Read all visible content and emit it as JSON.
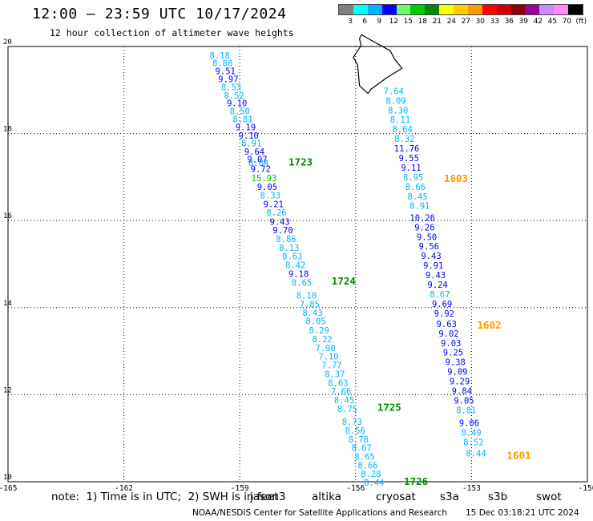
{
  "header": {
    "title": "12:00 — 23:59 UTC 10/17/2024",
    "subtitle": "12 hour collection of altimeter wave heights"
  },
  "colorbar": {
    "colors": [
      "#7f7f7f",
      "#00ffff",
      "#00b3ff",
      "#0000ff",
      "#66ff66",
      "#00cc00",
      "#008c00",
      "#ffff00",
      "#ffcc00",
      "#ff9900",
      "#ff0000",
      "#cc0000",
      "#880000",
      "#990099",
      "#c98cff",
      "#ff88ff",
      "#000000"
    ],
    "labels": [
      "3",
      "6",
      "9",
      "12",
      "15",
      "18",
      "21",
      "24",
      "27",
      "30",
      "33",
      "36",
      "39",
      "42",
      "45",
      "70",
      "(ft)"
    ]
  },
  "map": {
    "x_ticks": [
      "-165",
      "-162",
      "-159",
      "-156",
      "-153",
      "-150"
    ],
    "y_ticks": [
      "10",
      "12",
      "14",
      "16",
      "18",
      "20"
    ],
    "lon_range": [
      -165,
      -150
    ],
    "lat_range": [
      10,
      20
    ]
  },
  "tracks": [
    {
      "name": "west",
      "points": [
        {
          "lat": 19.8,
          "v": "8.18",
          "c": "#00b3ff"
        },
        {
          "lat": 19.62,
          "v": "8.88",
          "c": "#00b3ff"
        },
        {
          "lat": 19.44,
          "v": "9.51",
          "c": "#0000ff"
        },
        {
          "lat": 19.25,
          "v": "9.97",
          "c": "#0000ff"
        },
        {
          "lat": 19.07,
          "v": "8.53",
          "c": "#00b3ff"
        },
        {
          "lat": 18.88,
          "v": "8.52",
          "c": "#00b3ff"
        },
        {
          "lat": 18.7,
          "v": "9.10",
          "c": "#0000ff"
        },
        {
          "lat": 18.52,
          "v": "8.50",
          "c": "#00b3ff"
        },
        {
          "lat": 18.33,
          "v": "8.81",
          "c": "#00b3ff"
        },
        {
          "lat": 18.15,
          "v": "9.19",
          "c": "#0000ff"
        },
        {
          "lat": 17.96,
          "v": "9.10",
          "c": "#0000ff"
        },
        {
          "lat": 17.78,
          "v": "8.91",
          "c": "#00b3ff"
        },
        {
          "lat": 17.59,
          "v": "9.64",
          "c": "#0000ff"
        },
        {
          "lat": 17.41,
          "v": "9.07",
          "c": "#0000ff"
        },
        {
          "lat": 17.33,
          "v": "8.84",
          "c": "#00b3ff"
        },
        {
          "lat": 17.19,
          "v": "9.72",
          "c": "#0000ff"
        },
        {
          "lat": 16.98,
          "v": "15.93",
          "c": "#00cc00"
        },
        {
          "lat": 16.78,
          "v": "9.05",
          "c": "#0000ff"
        },
        {
          "lat": 16.58,
          "v": "8.33",
          "c": "#00b3ff"
        },
        {
          "lat": 16.38,
          "v": "9.21",
          "c": "#0000ff"
        },
        {
          "lat": 16.19,
          "v": "8.26",
          "c": "#00b3ff"
        },
        {
          "lat": 15.98,
          "v": "9.43",
          "c": "#0000ff"
        },
        {
          "lat": 15.78,
          "v": "9.70",
          "c": "#0000ff"
        },
        {
          "lat": 15.58,
          "v": "8.86",
          "c": "#00b3ff"
        },
        {
          "lat": 15.38,
          "v": "8.13",
          "c": "#00b3ff"
        },
        {
          "lat": 15.18,
          "v": "8.63",
          "c": "#00b3ff"
        },
        {
          "lat": 14.98,
          "v": "8.42",
          "c": "#00b3ff"
        },
        {
          "lat": 14.78,
          "v": "9.18",
          "c": "#0000ff"
        },
        {
          "lat": 14.58,
          "v": "8.65",
          "c": "#00b3ff"
        },
        {
          "lat": 14.28,
          "v": "8.10",
          "c": "#00b3ff"
        },
        {
          "lat": 14.08,
          "v": "7.85",
          "c": "#00b3ff"
        },
        {
          "lat": 13.89,
          "v": "8.43",
          "c": "#00b3ff"
        },
        {
          "lat": 13.69,
          "v": "8.05",
          "c": "#00b3ff"
        },
        {
          "lat": 13.48,
          "v": "8.29",
          "c": "#00b3ff"
        },
        {
          "lat": 13.28,
          "v": "8.22",
          "c": "#00b3ff"
        },
        {
          "lat": 13.08,
          "v": "7.90",
          "c": "#00b3ff"
        },
        {
          "lat": 12.88,
          "v": "7.10",
          "c": "#00b3ff"
        },
        {
          "lat": 12.68,
          "v": "7.77",
          "c": "#00b3ff"
        },
        {
          "lat": 12.48,
          "v": "8.37",
          "c": "#00b3ff"
        },
        {
          "lat": 12.27,
          "v": "8.63",
          "c": "#00b3ff"
        },
        {
          "lat": 12.08,
          "v": "7.66",
          "c": "#00b3ff"
        },
        {
          "lat": 11.88,
          "v": "8.45",
          "c": "#00b3ff"
        },
        {
          "lat": 11.68,
          "v": "8.75",
          "c": "#00b3ff"
        },
        {
          "lat": 11.38,
          "v": "8.73",
          "c": "#00b3ff"
        },
        {
          "lat": 11.18,
          "v": "8.56",
          "c": "#00b3ff"
        },
        {
          "lat": 10.98,
          "v": "8.78",
          "c": "#00b3ff"
        },
        {
          "lat": 10.78,
          "v": "8.67",
          "c": "#00b3ff"
        },
        {
          "lat": 10.58,
          "v": "8.65",
          "c": "#00b3ff"
        },
        {
          "lat": 10.38,
          "v": "8.66",
          "c": "#00b3ff"
        },
        {
          "lat": 10.18,
          "v": "8.28",
          "c": "#00b3ff"
        },
        {
          "lat": 9.98,
          "v": "8.44",
          "c": "#00b3ff"
        }
      ],
      "times": [
        {
          "lat": 17.36,
          "label": "1723",
          "c": "#008c00"
        },
        {
          "lat": 14.62,
          "label": "1724",
          "c": "#008c00"
        },
        {
          "lat": 11.72,
          "label": "1725",
          "c": "#008c00"
        },
        {
          "lat": 10.02,
          "label": "1726",
          "c": "#008c00"
        }
      ]
    },
    {
      "name": "east",
      "points": [
        {
          "lat": 18.98,
          "v": "7.64",
          "c": "#00b3ff"
        },
        {
          "lat": 18.76,
          "v": "8.09",
          "c": "#00b3ff"
        },
        {
          "lat": 18.54,
          "v": "8.30",
          "c": "#00b3ff"
        },
        {
          "lat": 18.32,
          "v": "8.11",
          "c": "#00b3ff"
        },
        {
          "lat": 18.1,
          "v": "8.64",
          "c": "#00b3ff"
        },
        {
          "lat": 17.88,
          "v": "8.32",
          "c": "#00b3ff"
        },
        {
          "lat": 17.66,
          "v": "11.76",
          "c": "#0000ff"
        },
        {
          "lat": 17.44,
          "v": "9.55",
          "c": "#0000ff"
        },
        {
          "lat": 17.22,
          "v": "9.11",
          "c": "#0000ff"
        },
        {
          "lat": 17.0,
          "v": "8.95",
          "c": "#00b3ff"
        },
        {
          "lat": 16.78,
          "v": "8.66",
          "c": "#00b3ff"
        },
        {
          "lat": 16.56,
          "v": "8.45",
          "c": "#00b3ff"
        },
        {
          "lat": 16.34,
          "v": "8.91",
          "c": "#00b3ff"
        },
        {
          "lat": 16.07,
          "v": "10.26",
          "c": "#0000ff"
        },
        {
          "lat": 15.85,
          "v": "9.26",
          "c": "#0000ff"
        },
        {
          "lat": 15.63,
          "v": "9.50",
          "c": "#0000ff"
        },
        {
          "lat": 15.41,
          "v": "9.56",
          "c": "#0000ff"
        },
        {
          "lat": 15.19,
          "v": "9.43",
          "c": "#0000ff"
        },
        {
          "lat": 14.97,
          "v": "9.91",
          "c": "#0000ff"
        },
        {
          "lat": 14.75,
          "v": "9.43",
          "c": "#0000ff"
        },
        {
          "lat": 14.53,
          "v": "9.24",
          "c": "#0000ff"
        },
        {
          "lat": 14.31,
          "v": "8.67",
          "c": "#00b3ff"
        },
        {
          "lat": 14.09,
          "v": "9.69",
          "c": "#0000ff"
        },
        {
          "lat": 13.87,
          "v": "9.92",
          "c": "#0000ff"
        },
        {
          "lat": 13.63,
          "v": "9.63",
          "c": "#0000ff"
        },
        {
          "lat": 13.41,
          "v": "9.02",
          "c": "#0000ff"
        },
        {
          "lat": 13.19,
          "v": "9.03",
          "c": "#0000ff"
        },
        {
          "lat": 12.97,
          "v": "9.25",
          "c": "#0000ff"
        },
        {
          "lat": 12.75,
          "v": "9.38",
          "c": "#0000ff"
        },
        {
          "lat": 12.53,
          "v": "9.09",
          "c": "#0000ff"
        },
        {
          "lat": 12.31,
          "v": "9.29",
          "c": "#0000ff"
        },
        {
          "lat": 12.09,
          "v": "9.84",
          "c": "#0000ff"
        },
        {
          "lat": 11.87,
          "v": "9.05",
          "c": "#0000ff"
        },
        {
          "lat": 11.65,
          "v": "8.81",
          "c": "#00b3ff"
        },
        {
          "lat": 11.35,
          "v": "9.06",
          "c": "#0000ff"
        },
        {
          "lat": 11.13,
          "v": "8.49",
          "c": "#00b3ff"
        },
        {
          "lat": 10.91,
          "v": "8.52",
          "c": "#00b3ff"
        },
        {
          "lat": 10.65,
          "v": "8.44",
          "c": "#00b3ff"
        }
      ],
      "times": [
        {
          "lat": 16.98,
          "label": "1603",
          "c": "#ff9900"
        },
        {
          "lat": 13.61,
          "label": "1602",
          "c": "#ff9900"
        },
        {
          "lat": 10.62,
          "label": "1601",
          "c": "#ff9900"
        }
      ]
    }
  ],
  "footer": {
    "note": "note:  1) Time is in UTC;  2) SWH is in feet",
    "legend": [
      {
        "name": "jason3",
        "c": "#008c00"
      },
      {
        "name": "altika",
        "c": "#ff9900"
      },
      {
        "name": "cryosat",
        "c": "#ff0000"
      },
      {
        "name": "s3a",
        "c": "#880000"
      },
      {
        "name": "s3b",
        "c": "#c98cff"
      },
      {
        "name": "swot",
        "c": "#ff88ff"
      }
    ],
    "credit": "NOAA/NESDIS Center for Satellite Applications and Research",
    "timestamp": "15 Dec 03:18:21 UTC 2024"
  }
}
